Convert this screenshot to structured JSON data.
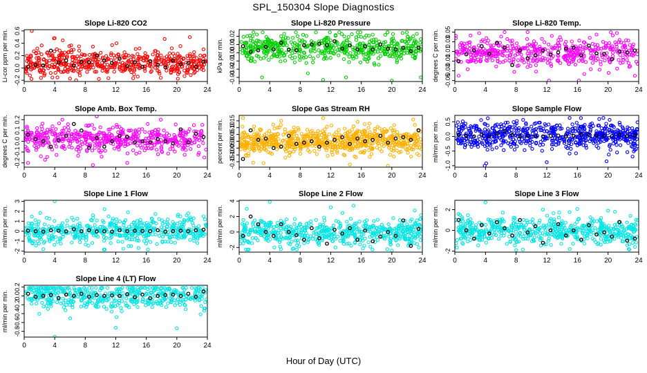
{
  "figure": {
    "title": "SPL_150304 Slope Diagnostics",
    "xlabel": "Hour of Day (UTC)"
  },
  "colors": {
    "red": "#ff0000",
    "green": "#00d000",
    "magenta": "#ff00ff",
    "orange": "#ffb000",
    "blue": "#0000ff",
    "cyan": "#00e5e5",
    "hourly": "#000000"
  },
  "chart_data": [
    {
      "type": "scatter",
      "title": "Slope Li-820 CO2",
      "ylabel": "Li-cor ppm per min.",
      "xlim": [
        0,
        24
      ],
      "xticks": [
        0,
        4,
        8,
        12,
        16,
        20,
        24
      ],
      "ylim": [
        -0.22,
        0.62
      ],
      "yticks": [
        -0.2,
        0.0,
        0.2,
        0.4,
        0.6
      ],
      "grid": false,
      "series": [
        {
          "role": "samples",
          "color": "#ff0000",
          "count": 520,
          "x": [
            0.6,
            1.0,
            3.9,
            6.8,
            12.1,
            17.9,
            18.4,
            21.7
          ],
          "y": [
            0.02,
            0.6,
            0.48,
            -0.2,
            0.4,
            -0.16,
            0.47,
            0.5
          ]
        },
        {
          "role": "hourly",
          "color": "#000000",
          "x": [
            0.5,
            1.5,
            2.5,
            3.5,
            4.5,
            5.5,
            6.5,
            7.5,
            8.5,
            9.5,
            10.5,
            11.5,
            12.5,
            13.5,
            14.5,
            15.5,
            16.5,
            17.5,
            18.5,
            19.5,
            20.5,
            21.5,
            22.5,
            23.5
          ],
          "y": [
            0.02,
            0.05,
            0.04,
            0.28,
            0.09,
            0.12,
            0.04,
            0.1,
            0.09,
            0.2,
            0.12,
            0.08,
            0.15,
            0.03,
            0.09,
            0.02,
            0.11,
            0.05,
            0.01,
            0.12,
            0.06,
            0.08,
            0.02,
            0.1
          ]
        }
      ]
    },
    {
      "type": "scatter",
      "title": "Slope Li-820 Pressure",
      "ylabel": "kPa per min.",
      "xlim": [
        0,
        24
      ],
      "xticks": [
        0,
        4,
        8,
        12,
        16,
        20,
        24
      ],
      "ylim": [
        -0.035,
        0.028
      ],
      "yticks": [
        -0.03,
        -0.02,
        -0.01,
        0.0,
        0.01,
        0.02
      ],
      "grid": false,
      "series": [
        {
          "role": "samples",
          "color": "#00d000",
          "count": 520,
          "x": [
            1.5,
            3.0,
            5.5,
            9.0,
            11.0,
            14.0,
            17.5,
            20.0,
            22.8,
            23.8
          ],
          "y": [
            -0.01,
            -0.03,
            0.02,
            -0.025,
            -0.033,
            -0.03,
            0.022,
            -0.034,
            0.02,
            -0.03
          ]
        },
        {
          "role": "hourly",
          "color": "#000000",
          "x": [
            0.5,
            1.5,
            2.5,
            3.5,
            4.5,
            5.5,
            6.5,
            7.5,
            8.5,
            9.5,
            10.5,
            11.5,
            12.5,
            13.5,
            14.5,
            15.5,
            16.5,
            17.5,
            18.5,
            19.5,
            20.5,
            21.5,
            22.5,
            23.5
          ],
          "y": [
            0.008,
            0.001,
            0.003,
            0.007,
            0.004,
            0.012,
            0.004,
            0.003,
            0.009,
            0.01,
            0.011,
            0.009,
            0.014,
            0.005,
            0.009,
            0.004,
            0.008,
            0.004,
            0.01,
            0.005,
            0.004,
            0.006,
            0.002,
            0.006
          ]
        }
      ]
    },
    {
      "type": "scatter",
      "title": "Slope Li-820 Temp.",
      "ylabel": "degrees C per min.",
      "xlim": [
        0,
        24
      ],
      "xticks": [
        0,
        4,
        8,
        12,
        16,
        20,
        24
      ],
      "ylim": [
        -0.052,
        0.055
      ],
      "yticks": [
        -0.05,
        -0.03,
        -0.01,
        0.01,
        0.03,
        0.05
      ],
      "grid": false,
      "series": [
        {
          "role": "samples",
          "color": "#ff00ff",
          "count": 480,
          "x": [
            0.5,
            6.5,
            9.5,
            12.3,
            16.2,
            18.5,
            23.5
          ],
          "y": [
            -0.04,
            0.05,
            0.05,
            -0.05,
            -0.05,
            0.045,
            -0.04
          ]
        },
        {
          "role": "hourly",
          "color": "#000000",
          "x": [
            0.5,
            1.5,
            2.5,
            3.5,
            4.5,
            5.5,
            6.5,
            7.5,
            8.5,
            9.5,
            10.5,
            11.5,
            12.5,
            13.5,
            14.5,
            15.5,
            16.5,
            17.5,
            18.5,
            19.5,
            20.5,
            21.5,
            22.5,
            23.5
          ],
          "y": [
            -0.01,
            0.004,
            0.012,
            0.021,
            0.005,
            0.028,
            0.018,
            -0.018,
            0.012,
            -0.004,
            0.002,
            0.012,
            0.004,
            0.008,
            0.016,
            0.018,
            0.002,
            0.022,
            0.006,
            0.005,
            -0.006,
            0.01,
            0.008,
            0.012
          ]
        }
      ]
    },
    {
      "type": "scatter",
      "title": "Slope Amb. Box Temp.",
      "ylabel": "degrees C per min.",
      "xlim": [
        0,
        24
      ],
      "xticks": [
        0,
        4,
        8,
        12,
        16,
        20,
        24
      ],
      "ylim": [
        -0.24,
        0.24
      ],
      "yticks": [
        -0.2,
        -0.1,
        0.0,
        0.1,
        0.2
      ],
      "grid": false,
      "series": [
        {
          "role": "samples",
          "color": "#ff00ff",
          "count": 520,
          "x": [
            0.5,
            5.0,
            9.0,
            9.5,
            13.5,
            17.9,
            23.6
          ],
          "y": [
            -0.2,
            0.2,
            -0.22,
            0.23,
            -0.2,
            0.2,
            -0.15
          ]
        },
        {
          "role": "hourly",
          "color": "#000000",
          "x": [
            0.5,
            1.5,
            2.5,
            3.5,
            4.5,
            5.5,
            6.5,
            7.5,
            8.5,
            9.5,
            10.5,
            11.5,
            12.5,
            13.5,
            14.5,
            15.5,
            16.5,
            17.5,
            18.5,
            19.5,
            20.5,
            21.5,
            22.5,
            23.5
          ],
          "y": [
            0.06,
            0.02,
            0.0,
            -0.05,
            0.01,
            0.05,
            0.16,
            0.1,
            -0.06,
            0.03,
            -0.05,
            0.0,
            0.05,
            0.04,
            -0.01,
            0.0,
            -0.01,
            0.02,
            0.0,
            -0.02,
            0.11,
            -0.01,
            0.07,
            0.04
          ]
        }
      ]
    },
    {
      "type": "scatter",
      "title": "Slope Gas Stream RH",
      "ylabel": "percent per min.",
      "xlim": [
        0,
        24
      ],
      "xticks": [
        0,
        4,
        8,
        12,
        16,
        20,
        24
      ],
      "ylim": [
        -0.19,
        0.19
      ],
      "yticks": [
        -0.15,
        -0.1,
        -0.05,
        0.0,
        0.05,
        0.1,
        0.15
      ],
      "grid": false,
      "series": [
        {
          "role": "samples",
          "color": "#ffb000",
          "count": 720,
          "x": [
            0.5,
            3.2,
            5.5,
            11.0,
            14.5,
            19.5,
            22.8
          ],
          "y": [
            0.17,
            -0.16,
            0.15,
            0.17,
            -0.17,
            -0.18,
            0.16
          ]
        },
        {
          "role": "hourly",
          "color": "#000000",
          "x": [
            0.5,
            1.5,
            2.5,
            3.5,
            4.5,
            5.5,
            6.5,
            7.5,
            8.5,
            9.5,
            10.5,
            11.5,
            12.5,
            13.5,
            14.5,
            15.5,
            16.5,
            17.5,
            18.5,
            19.5,
            20.5,
            21.5,
            22.5,
            23.5
          ],
          "y": [
            -0.13,
            0.08,
            0.01,
            0.02,
            -0.05,
            -0.04,
            0.04,
            -0.02,
            -0.01,
            0.0,
            -0.04,
            -0.01,
            0.01,
            0.03,
            -0.02,
            0.02,
            0.0,
            0.01,
            0.04,
            -0.01,
            0.02,
            0.03,
            0.01,
            0.08
          ]
        }
      ]
    },
    {
      "type": "scatter",
      "title": "Slope Sample Flow",
      "ylabel": "ml/min per min.",
      "xlim": [
        0,
        24
      ],
      "xticks": [
        0,
        4,
        8,
        12,
        16,
        20,
        24
      ],
      "ylim": [
        -1.05,
        0.72
      ],
      "yticks": [
        -1.0,
        -0.5,
        0.0,
        0.5
      ],
      "grid": false,
      "series": [
        {
          "role": "samples",
          "color": "#0000ff",
          "count": 620,
          "x": [
            3.9,
            4.1,
            4.3,
            7.8,
            12.0,
            19.8
          ],
          "y": [
            -1.0,
            -0.92,
            0.62,
            -0.45,
            -0.88,
            -0.85
          ]
        },
        {
          "role": "hourly",
          "color": "#000000",
          "x": [
            0.5,
            1.5,
            2.5,
            3.5,
            4.5,
            5.5,
            6.5,
            7.5,
            8.5,
            9.5,
            10.5,
            11.5,
            12.5,
            13.5,
            14.5,
            15.5,
            16.5,
            17.5,
            18.5,
            19.5,
            20.5,
            21.5,
            22.5,
            23.5
          ],
          "y": [
            0.05,
            0.02,
            0.0,
            0.06,
            0.0,
            0.1,
            0.18,
            0.05,
            0.0,
            0.02,
            0.01,
            0.0,
            0.02,
            0.03,
            0.0,
            0.02,
            0.07,
            0.05,
            0.03,
            0.02,
            0.01,
            0.05,
            0.02,
            0.04
          ]
        }
      ]
    },
    {
      "type": "scatter",
      "title": "Slope Line 1 Flow",
      "ylabel": "ml/min per min.",
      "xlim": [
        0,
        24
      ],
      "xticks": [
        0,
        4,
        8,
        12,
        16,
        20,
        24
      ],
      "ylim": [
        -2.1,
        3.1
      ],
      "yticks": [
        -2,
        -1,
        0,
        1,
        2,
        3
      ],
      "grid": false,
      "series": [
        {
          "role": "samples",
          "color": "#00e5e5",
          "count": 520,
          "x": [
            4.0,
            2.5,
            9.0,
            14.0,
            21.5,
            23.5
          ],
          "y": [
            3.0,
            -1.8,
            1.6,
            -1.5,
            1.8,
            1.5
          ]
        },
        {
          "role": "hourly",
          "color": "#000000",
          "x": [
            0.5,
            1.5,
            2.5,
            3.5,
            4.5,
            5.5,
            6.5,
            7.5,
            8.5,
            9.5,
            10.5,
            11.5,
            12.5,
            13.5,
            14.5,
            15.5,
            16.5,
            17.5,
            18.5,
            19.5,
            20.5,
            21.5,
            22.5,
            23.5
          ],
          "y": [
            0.05,
            0.0,
            -0.05,
            0.1,
            0.05,
            -0.02,
            0.2,
            0.0,
            0.1,
            -0.02,
            0.0,
            -0.05,
            0.1,
            0.0,
            0.05,
            0.02,
            0.0,
            0.1,
            -0.05,
            0.0,
            0.05,
            0.0,
            0.1,
            0.15
          ]
        }
      ]
    },
    {
      "type": "scatter",
      "title": "Slope Line 2 Flow",
      "ylabel": "ml/min per min.",
      "xlim": [
        0,
        24
      ],
      "xticks": [
        0,
        4,
        8,
        12,
        16,
        20,
        24
      ],
      "ylim": [
        -2.6,
        4.1
      ],
      "yticks": [
        -2,
        0,
        2,
        4
      ],
      "grid": false,
      "series": [
        {
          "role": "samples",
          "color": "#00e5e5",
          "count": 560,
          "x": [
            1.0,
            4.0,
            7.0,
            12.0,
            15.0,
            20.0,
            23.0
          ],
          "y": [
            3.0,
            3.9,
            -2.2,
            3.2,
            3.4,
            -2.4,
            2.8
          ]
        },
        {
          "role": "hourly",
          "color": "#000000",
          "x": [
            0.5,
            1.5,
            2.5,
            3.5,
            4.5,
            5.5,
            6.5,
            7.5,
            8.5,
            9.5,
            10.5,
            11.5,
            12.5,
            13.5,
            14.5,
            15.5,
            16.5,
            17.5,
            18.5,
            19.5,
            20.5,
            21.5,
            22.5,
            23.5
          ],
          "y": [
            -0.5,
            2.0,
            1.0,
            0.0,
            -0.5,
            1.0,
            0.0,
            -0.4,
            -1.0,
            0.5,
            -0.8,
            -1.5,
            0.3,
            -0.2,
            0.5,
            -1.0,
            0.2,
            -1.2,
            -0.6,
            0.0,
            -0.5,
            1.5,
            -1.8,
            0.4
          ]
        }
      ]
    },
    {
      "type": "scatter",
      "title": "Slope Line 3 Flow",
      "ylabel": "ml/min per min.",
      "xlim": [
        0,
        24
      ],
      "xticks": [
        0,
        4,
        8,
        12,
        16,
        20,
        24
      ],
      "ylim": [
        -2.1,
        2.9
      ],
      "yticks": [
        -2,
        0,
        2
      ],
      "grid": false,
      "series": [
        {
          "role": "samples",
          "color": "#00e5e5",
          "count": 560,
          "x": [
            4.0,
            8.0,
            11.5,
            15.0,
            20.0,
            23.5
          ],
          "y": [
            2.7,
            -1.9,
            2.0,
            -1.8,
            1.9,
            -1.6
          ]
        },
        {
          "role": "hourly",
          "color": "#000000",
          "x": [
            0.5,
            1.5,
            2.5,
            3.5,
            4.5,
            5.5,
            6.5,
            7.5,
            8.5,
            9.5,
            10.5,
            11.5,
            12.5,
            13.5,
            14.5,
            15.5,
            16.5,
            17.5,
            18.5,
            19.5,
            20.5,
            21.5,
            22.5,
            23.5
          ],
          "y": [
            1.0,
            0.0,
            -0.8,
            0.5,
            -0.3,
            0.8,
            0.2,
            -0.5,
            1.0,
            -0.2,
            0.4,
            -1.2,
            0.0,
            0.6,
            -0.5,
            0.0,
            -0.9,
            0.5,
            -0.4,
            -0.2,
            -0.6,
            0.8,
            -1.0,
            -0.8
          ]
        }
      ]
    },
    {
      "type": "scatter",
      "title": "Slope Line 4 (LT) Flow",
      "ylabel": "ml/min per min.",
      "xlim": [
        0,
        24
      ],
      "xticks": [
        0,
        4,
        8,
        12,
        16,
        20,
        24
      ],
      "ylim": [
        -0.93,
        0.24
      ],
      "yticks": [
        -0.8,
        -0.6,
        -0.4,
        -0.2,
        0.0,
        0.2
      ],
      "grid": false,
      "series": [
        {
          "role": "samples",
          "color": "#00e5e5",
          "count": 480,
          "x": [
            4.0,
            12.0,
            20.0,
            2.0,
            9.5,
            17.0
          ],
          "y": [
            -0.92,
            -0.72,
            -0.73,
            0.1,
            -0.25,
            0.12
          ]
        },
        {
          "role": "hourly",
          "color": "#000000",
          "x": [
            0.5,
            1.5,
            2.5,
            3.5,
            4.5,
            5.5,
            6.5,
            7.5,
            8.5,
            9.5,
            10.5,
            11.5,
            12.5,
            13.5,
            14.5,
            15.5,
            16.5,
            17.5,
            18.5,
            19.5,
            20.5,
            21.5,
            22.5,
            23.5
          ],
          "y": [
            0.05,
            -0.02,
            0.0,
            0.02,
            -0.05,
            0.03,
            0.0,
            0.05,
            -0.02,
            0.02,
            0.0,
            0.01,
            0.0,
            0.04,
            -0.03,
            0.03,
            -0.05,
            0.0,
            0.02,
            0.03,
            0.0,
            0.05,
            -0.02,
            0.1
          ]
        }
      ]
    }
  ]
}
